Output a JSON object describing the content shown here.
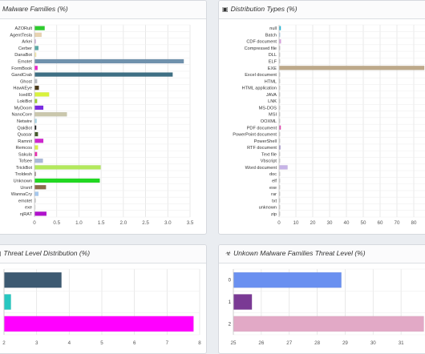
{
  "panels": {
    "malware_families": {
      "title": "Malware Families (%)",
      "icon": "bar-chart-icon"
    },
    "distribution_types": {
      "title": "Distribution Types (%)",
      "icon": "image-icon"
    },
    "threat_level": {
      "title": "Threat Level Distribution (%)",
      "icon": "bar-chart-icon"
    },
    "unknown_threat_level": {
      "title": "Unkown Malware Families Threat Level (%)",
      "icon": "biohazard-icon"
    }
  },
  "chart_data": [
    {
      "type": "bar",
      "orientation": "horizontal",
      "title": "Malware Families (%)",
      "categories": [
        "AZORult",
        "AgentTesla",
        "Arkei",
        "Cerber",
        "DanaBot",
        "Emotet",
        "FormBook",
        "GandCrab",
        "Ghost",
        "HawkEye",
        "IcedID",
        "LokiBot",
        "MyDoom",
        "NanoCore",
        "Netwire",
        "QakBot",
        "Quasar",
        "Ramnit",
        "Remcos",
        "Sakula",
        "Tofsee",
        "TrickBot",
        "Troldesh",
        "Unknown",
        "Ursnif",
        "WannaCry",
        "emotet",
        "exe",
        "njRAT"
      ],
      "values": [
        0.22,
        0.15,
        0.02,
        0.08,
        0.03,
        3.35,
        0.06,
        3.1,
        0.05,
        0.09,
        0.32,
        0.05,
        0.19,
        0.72,
        0.04,
        0.03,
        0.07,
        0.19,
        0.07,
        0.05,
        0.18,
        1.48,
        0.02,
        1.46,
        0.25,
        0.08,
        0.02,
        0.01,
        0.26
      ],
      "colors": [
        "#2ecc2e",
        "#e8d3b0",
        "#c9a7d6",
        "#5aa9a6",
        "#f5e9a8",
        "#7092ad",
        "#ee22cc",
        "#3e6f84",
        "#b8bcc2",
        "#4a3a18",
        "#d8f23c",
        "#9ad232",
        "#7a2ce2",
        "#cac7ac",
        "#a7d5e8",
        "#1b1b1b",
        "#455a2a",
        "#cf25cf",
        "#d9f04a",
        "#ea30b0",
        "#a8b8d8",
        "#b3e95c",
        "#8a7272",
        "#22d822",
        "#8c6a4c",
        "#a5c8ee",
        "#c8c8c8",
        "#eeeeee",
        "#b012cc"
      ],
      "xlim": [
        0,
        3.5
      ],
      "xticks": [
        "0",
        "0.5",
        "1.0",
        "1.5",
        "2.0",
        "2.5",
        "3.0",
        "3.5"
      ],
      "grid": true
    },
    {
      "type": "bar",
      "orientation": "horizontal",
      "title": "Distribution Types (%)",
      "categories": [
        "null",
        "Batch",
        "CDF document",
        "Compressed file",
        "DLL",
        "ELF",
        "EXE",
        "Excel document",
        "HTML",
        "HTML application",
        "JAVA",
        "LNK",
        "MS-DOS",
        "MSI",
        "OOXML",
        "PDF document",
        "PowerPoint document",
        "PowerShell",
        "RTF document",
        "Text file",
        "Vbscript",
        "Word document",
        "doc",
        "elf",
        "exe",
        "rar",
        "txt",
        "unknown",
        "zip"
      ],
      "values": [
        0.8,
        0.3,
        0.9,
        0.1,
        0.1,
        0.2,
        86,
        0.1,
        0.3,
        0.1,
        0.2,
        0.1,
        0.1,
        0.1,
        0.1,
        0.8,
        0.1,
        0.1,
        0.5,
        0.3,
        0.2,
        4.8,
        0.1,
        0.1,
        0.1,
        0.1,
        0.1,
        0.1,
        0.1
      ],
      "colors": [
        "#2ab8d6",
        "#a6c8e6",
        "#d8a0de",
        "#c0c0c0",
        "#cccccc",
        "#cccccc",
        "#bda98a",
        "#cccccc",
        "#cccccc",
        "#cccccc",
        "#cccccc",
        "#cccccc",
        "#cccccc",
        "#cccccc",
        "#cccccc",
        "#e24ab0",
        "#cccccc",
        "#cccccc",
        "#8a7abb",
        "#cccccc",
        "#cccccc",
        "#c6b3e6",
        "#cccccc",
        "#cccccc",
        "#cccccc",
        "#cccccc",
        "#cccccc",
        "#cccccc",
        "#cccccc"
      ],
      "xlim": [
        0,
        90
      ],
      "xticks": [
        "0",
        "10",
        "20",
        "30",
        "40",
        "50",
        "60",
        "70",
        "80",
        "90"
      ],
      "grid": true
    },
    {
      "type": "bar",
      "orientation": "horizontal",
      "title": "Threat Level Distribution (%)",
      "categories": [
        "",
        "",
        ""
      ],
      "values": [
        3.75,
        2.2,
        7.8
      ],
      "colors": [
        "#3d5a72",
        "#27c7c0",
        "#ff00ff"
      ],
      "xlim": [
        2,
        8
      ],
      "xticks": [
        "2",
        "3",
        "4",
        "5",
        "6",
        "7",
        "8"
      ],
      "grid": true
    },
    {
      "type": "bar",
      "orientation": "horizontal",
      "title": "Unkown Malware Families Threat Level (%)",
      "categories": [
        "0",
        "1",
        "2"
      ],
      "values": [
        28.85,
        25.65,
        31.8
      ],
      "colors": [
        "#6a90f0",
        "#7a3a94",
        "#e2a9c6"
      ],
      "xlim": [
        25,
        32
      ],
      "xticks": [
        "25",
        "26",
        "27",
        "28",
        "29",
        "30",
        "31",
        "32"
      ],
      "grid": true
    }
  ]
}
